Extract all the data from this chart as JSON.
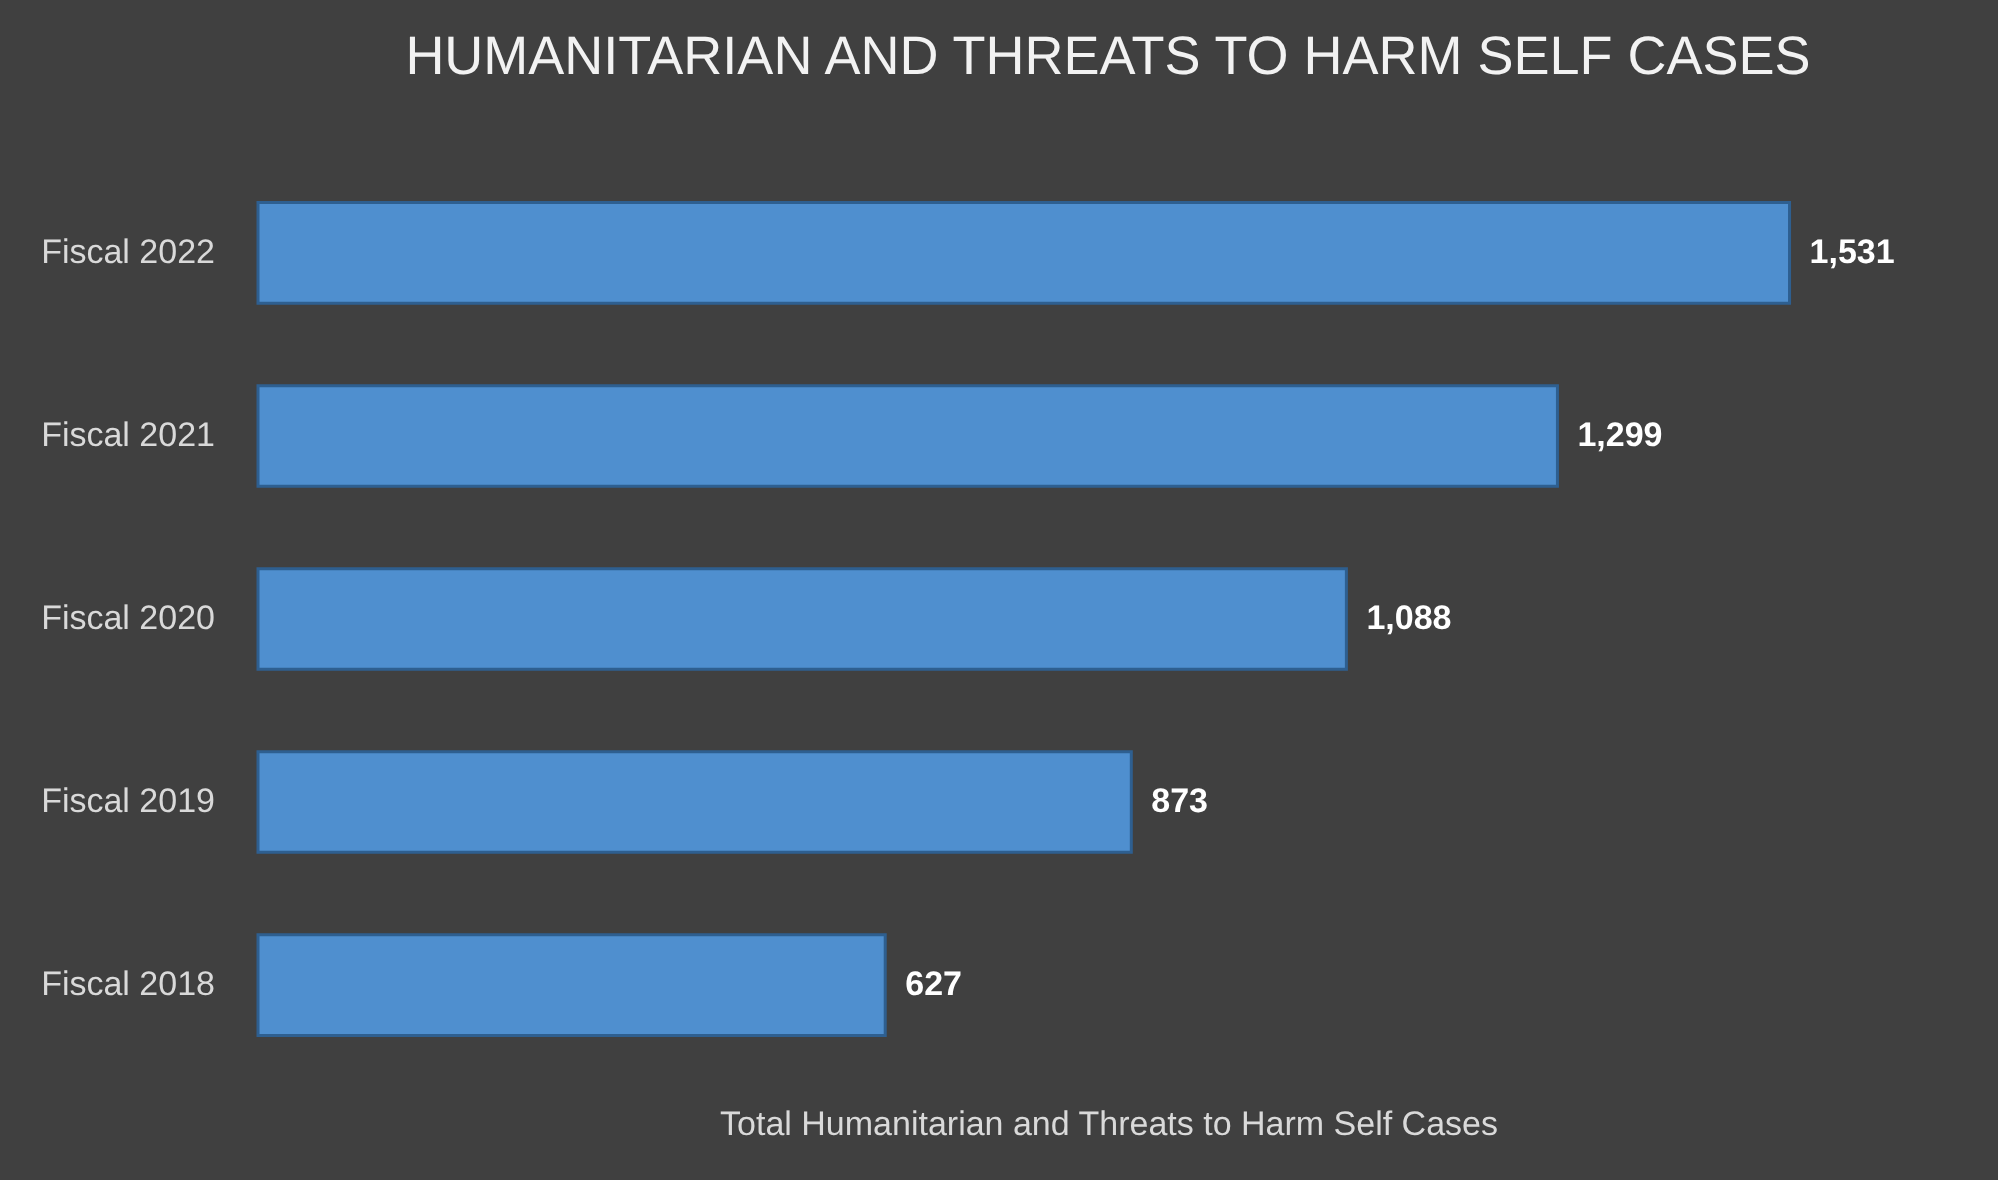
{
  "chart_data": {
    "type": "bar",
    "orientation": "horizontal",
    "title": "HUMANITARIAN AND THREATS TO HARM SELF CASES",
    "xlabel": "Total Humanitarian and Threats to Harm Self Cases",
    "categories": [
      "Fiscal 2022",
      "Fiscal 2021",
      "Fiscal 2020",
      "Fiscal 2019",
      "Fiscal 2018"
    ],
    "values": [
      1531,
      1299,
      1088,
      873,
      627
    ],
    "color": "#4f8fcf",
    "value_labels": [
      "1,531",
      "1,299",
      "1,088",
      "873",
      "627"
    ]
  }
}
